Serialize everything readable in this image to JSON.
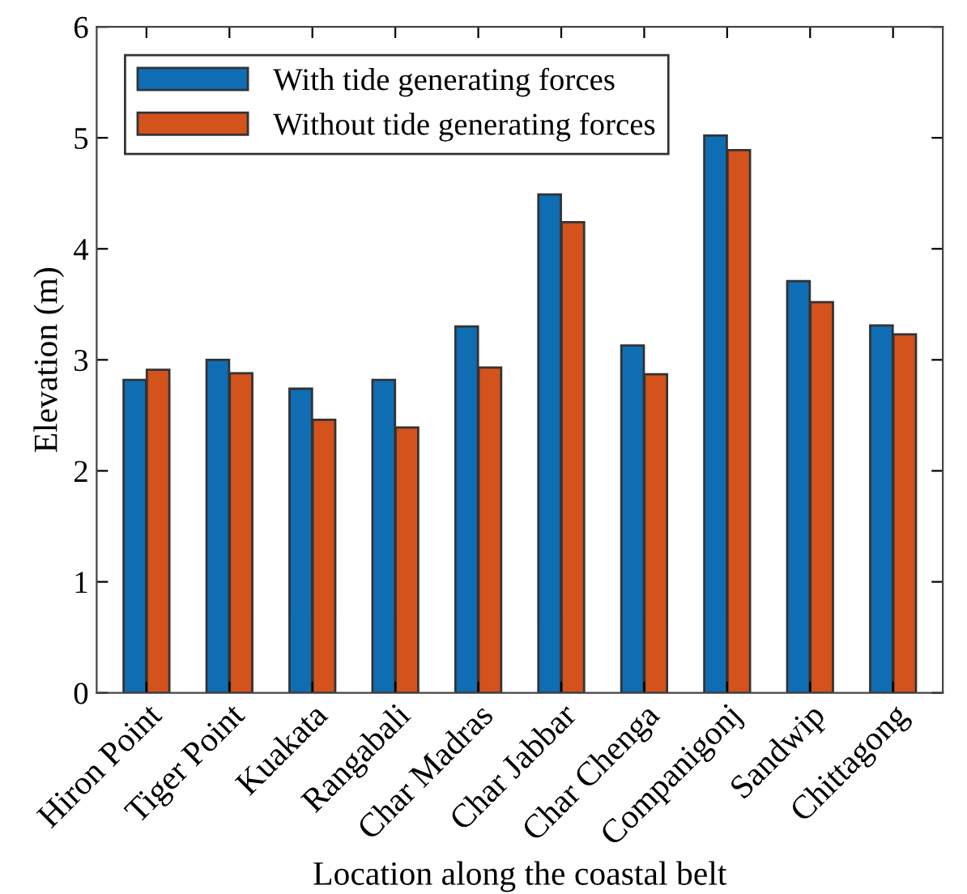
{
  "chart_data": {
    "type": "bar",
    "xlabel": "Location along the coastal belt",
    "ylabel": "Elevation (m)",
    "categories": [
      "Hiron Point",
      "Tiger Point",
      "Kuakata",
      "Rangabali",
      "Char Madras",
      "Char Jabbar",
      "Char Chenga",
      "Companigonj",
      "Sandwip",
      "Chittagong"
    ],
    "series": [
      {
        "name": "With tide generating forces",
        "color": "#0f6db4",
        "values": [
          2.82,
          3.0,
          2.74,
          2.82,
          3.3,
          4.49,
          3.13,
          5.02,
          3.71,
          3.31
        ]
      },
      {
        "name": "Without tide generating forces",
        "color": "#d4521c",
        "values": [
          2.91,
          2.88,
          2.46,
          2.39,
          2.93,
          4.24,
          2.87,
          4.89,
          3.52,
          3.23
        ]
      }
    ],
    "ylim": [
      0,
      6
    ],
    "yticks": [
      0,
      1,
      2,
      3,
      4,
      5,
      6
    ],
    "grid": false,
    "legend": "top left"
  }
}
